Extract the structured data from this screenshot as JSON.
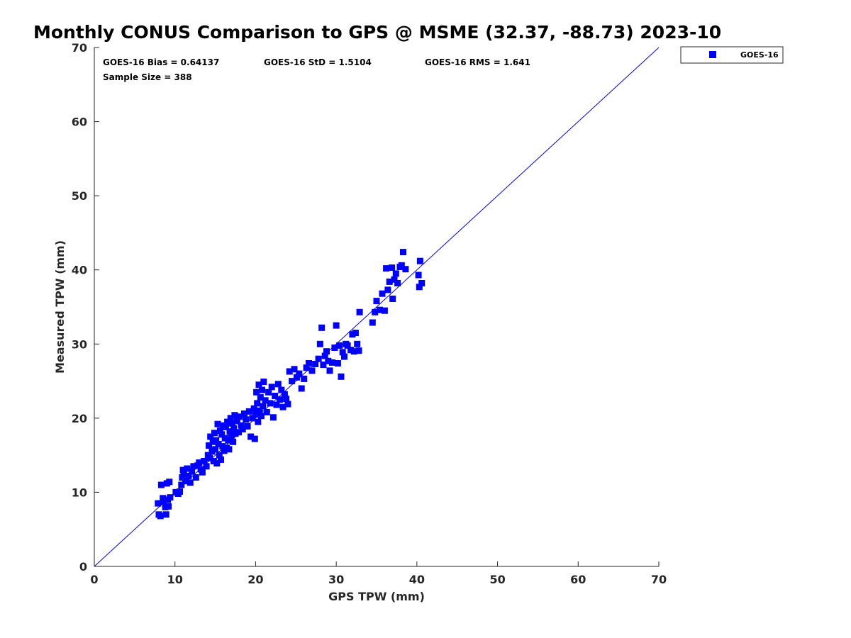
{
  "chart_data": {
    "type": "scatter",
    "title": "Monthly CONUS Comparison to GPS @ MSME (32.37, -88.73) 2023-10",
    "xlabel": "GPS TPW (mm)",
    "ylabel": "Measured TPW (mm)",
    "xlim": [
      0,
      70
    ],
    "ylim": [
      0,
      70
    ],
    "xticks": [
      0,
      10,
      20,
      30,
      40,
      50,
      60,
      70
    ],
    "yticks": [
      0,
      10,
      20,
      30,
      40,
      50,
      60,
      70
    ],
    "legend_position": "outside-top-right",
    "reference_line": {
      "name": "1:1",
      "x": [
        0,
        70
      ],
      "y": [
        0,
        70
      ],
      "color": "#0000ff"
    },
    "stats": {
      "bias": "GOES-16 Bias = 0.64137",
      "std": "GOES-16 StD = 1.5104",
      "rms": "GOES-16 RMS = 1.641",
      "sample_size": "Sample Size = 388"
    },
    "series": [
      {
        "name": "GOES-16",
        "color": "#0000ff",
        "marker": "square",
        "points": [
          [
            7.9,
            8.5
          ],
          [
            8.0,
            7.0
          ],
          [
            8.2,
            6.8
          ],
          [
            8.3,
            11.0
          ],
          [
            8.5,
            9.2
          ],
          [
            8.6,
            8.7
          ],
          [
            8.8,
            8.0
          ],
          [
            8.9,
            7.0
          ],
          [
            9.0,
            11.2
          ],
          [
            9.1,
            9.0
          ],
          [
            9.2,
            8.1
          ],
          [
            9.3,
            11.4
          ],
          [
            9.4,
            9.3
          ],
          [
            10.1,
            10.0
          ],
          [
            10.4,
            9.8
          ],
          [
            10.6,
            10.1
          ],
          [
            10.8,
            11.0
          ],
          [
            10.9,
            12.0
          ],
          [
            11.0,
            13.0
          ],
          [
            11.1,
            12.5
          ],
          [
            11.3,
            11.5
          ],
          [
            11.5,
            13.2
          ],
          [
            11.7,
            12.2
          ],
          [
            11.9,
            11.3
          ],
          [
            12.1,
            12.8
          ],
          [
            12.3,
            13.5
          ],
          [
            12.6,
            12.0
          ],
          [
            12.8,
            13.6
          ],
          [
            13.0,
            14.0
          ],
          [
            13.2,
            13.1
          ],
          [
            13.4,
            12.7
          ],
          [
            13.6,
            14.2
          ],
          [
            13.9,
            13.5
          ],
          [
            14.1,
            15.0
          ],
          [
            14.2,
            16.3
          ],
          [
            14.3,
            14.6
          ],
          [
            14.4,
            17.5
          ],
          [
            14.6,
            15.5
          ],
          [
            14.7,
            16.8
          ],
          [
            14.8,
            14.2
          ],
          [
            14.9,
            18.0
          ],
          [
            15.0,
            15.8
          ],
          [
            15.1,
            17.0
          ],
          [
            15.2,
            13.9
          ],
          [
            15.3,
            19.2
          ],
          [
            15.4,
            16.5
          ],
          [
            15.5,
            15.0
          ],
          [
            15.6,
            18.3
          ],
          [
            15.7,
            14.4
          ],
          [
            15.8,
            17.8
          ],
          [
            15.9,
            16.2
          ],
          [
            16.0,
            19.0
          ],
          [
            16.1,
            15.6
          ],
          [
            16.2,
            17.3
          ],
          [
            16.3,
            18.8
          ],
          [
            16.4,
            16.0
          ],
          [
            16.5,
            19.5
          ],
          [
            16.6,
            17.0
          ],
          [
            16.7,
            15.8
          ],
          [
            16.8,
            18.2
          ],
          [
            16.9,
            20.0
          ],
          [
            17.0,
            17.5
          ],
          [
            17.1,
            19.3
          ],
          [
            17.2,
            16.8
          ],
          [
            17.3,
            18.6
          ],
          [
            17.4,
            20.4
          ],
          [
            17.5,
            17.9
          ],
          [
            17.7,
            19.6
          ],
          [
            17.9,
            18.1
          ],
          [
            18.0,
            20.2
          ],
          [
            18.2,
            19.0
          ],
          [
            18.4,
            18.5
          ],
          [
            18.6,
            20.6
          ],
          [
            18.8,
            19.8
          ],
          [
            19.0,
            18.9
          ],
          [
            19.2,
            20.9
          ],
          [
            19.4,
            17.5
          ],
          [
            19.6,
            20.0
          ],
          [
            19.8,
            21.3
          ],
          [
            19.9,
            17.2
          ],
          [
            20.0,
            20.5
          ],
          [
            20.1,
            23.5
          ],
          [
            20.2,
            22.0
          ],
          [
            20.3,
            19.5
          ],
          [
            20.4,
            24.5
          ],
          [
            20.5,
            21.0
          ],
          [
            20.6,
            22.8
          ],
          [
            20.7,
            20.3
          ],
          [
            20.8,
            23.8
          ],
          [
            20.9,
            21.6
          ],
          [
            21.0,
            24.9
          ],
          [
            21.2,
            22.4
          ],
          [
            21.4,
            20.8
          ],
          [
            21.6,
            23.5
          ],
          [
            21.8,
            22.0
          ],
          [
            22.0,
            24.2
          ],
          [
            22.2,
            20.1
          ],
          [
            22.4,
            23.0
          ],
          [
            22.6,
            21.8
          ],
          [
            22.8,
            24.6
          ],
          [
            23.0,
            22.5
          ],
          [
            23.2,
            23.8
          ],
          [
            23.4,
            21.5
          ],
          [
            23.6,
            23.2
          ],
          [
            23.8,
            22.6
          ],
          [
            24.0,
            21.9
          ],
          [
            24.2,
            26.3
          ],
          [
            24.5,
            25.0
          ],
          [
            24.8,
            26.6
          ],
          [
            25.1,
            25.5
          ],
          [
            25.4,
            26.0
          ],
          [
            25.7,
            24.0
          ],
          [
            26.0,
            25.3
          ],
          [
            26.3,
            26.8
          ],
          [
            26.6,
            27.4
          ],
          [
            27.0,
            26.4
          ],
          [
            27.4,
            27.3
          ],
          [
            27.8,
            28.0
          ],
          [
            28.0,
            30.0
          ],
          [
            28.2,
            32.2
          ],
          [
            28.4,
            27.2
          ],
          [
            28.6,
            28.4
          ],
          [
            28.8,
            29.0
          ],
          [
            29.0,
            27.7
          ],
          [
            29.2,
            26.4
          ],
          [
            29.5,
            27.5
          ],
          [
            29.8,
            29.5
          ],
          [
            30.0,
            32.5
          ],
          [
            30.2,
            27.4
          ],
          [
            30.4,
            29.8
          ],
          [
            30.6,
            25.6
          ],
          [
            30.8,
            28.9
          ],
          [
            31.0,
            28.3
          ],
          [
            31.2,
            30.0
          ],
          [
            31.4,
            29.8
          ],
          [
            31.8,
            29.2
          ],
          [
            32.0,
            31.3
          ],
          [
            32.2,
            29.0
          ],
          [
            32.4,
            31.5
          ],
          [
            32.6,
            30.0
          ],
          [
            32.8,
            29.1
          ],
          [
            32.9,
            34.3
          ],
          [
            34.5,
            32.9
          ],
          [
            34.8,
            34.3
          ],
          [
            35.0,
            35.8
          ],
          [
            35.4,
            34.6
          ],
          [
            35.7,
            36.8
          ],
          [
            36.0,
            34.5
          ],
          [
            36.2,
            40.2
          ],
          [
            36.4,
            37.3
          ],
          [
            36.6,
            38.4
          ],
          [
            36.9,
            40.3
          ],
          [
            37.0,
            36.1
          ],
          [
            37.2,
            38.7
          ],
          [
            37.4,
            39.5
          ],
          [
            37.6,
            38.2
          ],
          [
            37.9,
            40.4
          ],
          [
            38.1,
            40.6
          ],
          [
            38.3,
            42.4
          ],
          [
            38.6,
            40.1
          ],
          [
            40.2,
            39.3
          ],
          [
            40.4,
            41.2
          ],
          [
            40.6,
            38.2
          ],
          [
            40.3,
            37.7
          ]
        ]
      }
    ]
  }
}
